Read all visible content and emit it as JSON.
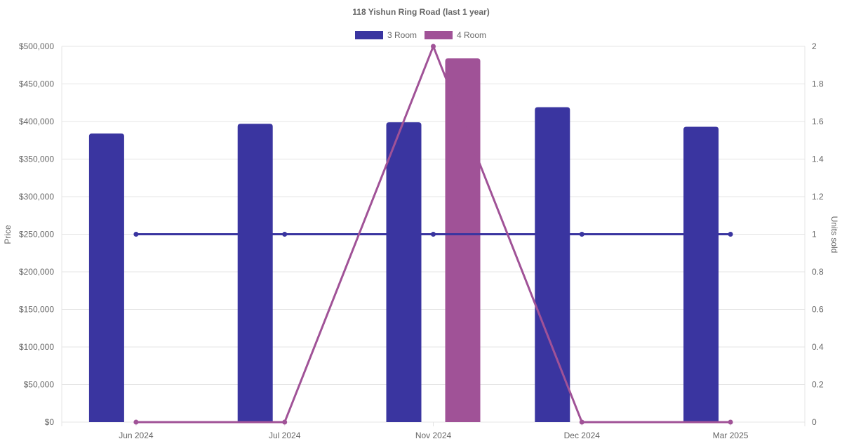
{
  "chart_data": {
    "type": "bar",
    "title": "118 Yishun Ring Road (last 1 year)",
    "categories": [
      "Jun 2024",
      "Jul 2024",
      "Nov 2024",
      "Dec 2024",
      "Mar 2025"
    ],
    "y_left": {
      "label": "Price",
      "ylim": [
        0,
        500000
      ],
      "ticks": [
        "$0",
        "$50,000",
        "$100,000",
        "$150,000",
        "$200,000",
        "$250,000",
        "$300,000",
        "$350,000",
        "$400,000",
        "$450,000",
        "$500,000"
      ]
    },
    "y_right": {
      "label": "Units sold",
      "ylim": [
        0,
        2
      ],
      "ticks": [
        "0",
        "0.2",
        "0.4",
        "0.6",
        "0.8",
        "1",
        "1.2",
        "1.4",
        "1.6",
        "1.8",
        "2"
      ]
    },
    "bar_series": [
      {
        "name": "3 Room",
        "color": "#3a35a0",
        "values": [
          384000,
          397000,
          399000,
          419000,
          393000
        ]
      },
      {
        "name": "4 Room",
        "color": "#a05297",
        "values": [
          null,
          null,
          484000,
          null,
          null
        ]
      }
    ],
    "line_series": [
      {
        "series": "3 Room",
        "color": "#3a35a0",
        "axis": "right",
        "values": [
          1,
          1,
          1,
          1,
          1
        ]
      },
      {
        "series": "4 Room",
        "color": "#a05297",
        "axis": "right",
        "values": [
          0,
          0,
          2,
          0,
          0
        ]
      }
    ],
    "legend": {
      "position": "top"
    },
    "grid": true
  }
}
